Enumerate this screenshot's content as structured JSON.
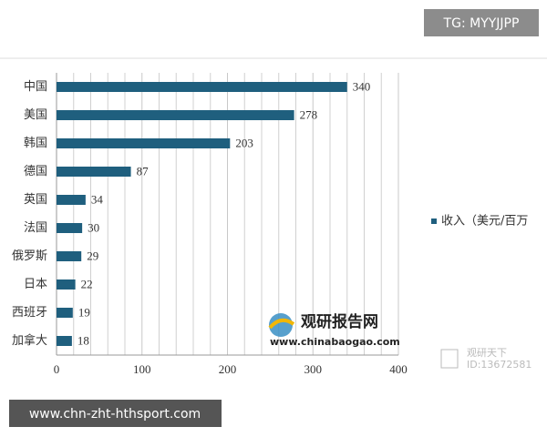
{
  "chart_data": {
    "type": "barh",
    "categories": [
      "中国",
      "美国",
      "韩国",
      "德国",
      "英国",
      "法国",
      "俄罗斯",
      "日本",
      "西班牙",
      "加拿大"
    ],
    "series": [
      {
        "name": "收入（美元/百万",
        "color": "#1f5f7e",
        "values": [
          340,
          278,
          203,
          87,
          34,
          30,
          29,
          22,
          19,
          18
        ]
      }
    ],
    "xlim": [
      0,
      400
    ],
    "xticks": [
      0,
      100,
      200,
      300,
      400
    ],
    "minor_xticks": [
      20,
      40,
      60,
      80,
      120,
      140,
      160,
      180,
      220,
      240,
      260,
      280,
      320,
      340,
      360,
      380
    ],
    "grid": true,
    "legend": "right"
  },
  "overlays": {
    "top_badge": "TG: MYYJJPP",
    "bottom_badge": "www.chn-zht-hthsport.com",
    "logo_name": "观研报告网",
    "logo_url": "www.chinabaogao.com",
    "corner_name": "观研天下",
    "corner_id": "ID:13672581"
  }
}
